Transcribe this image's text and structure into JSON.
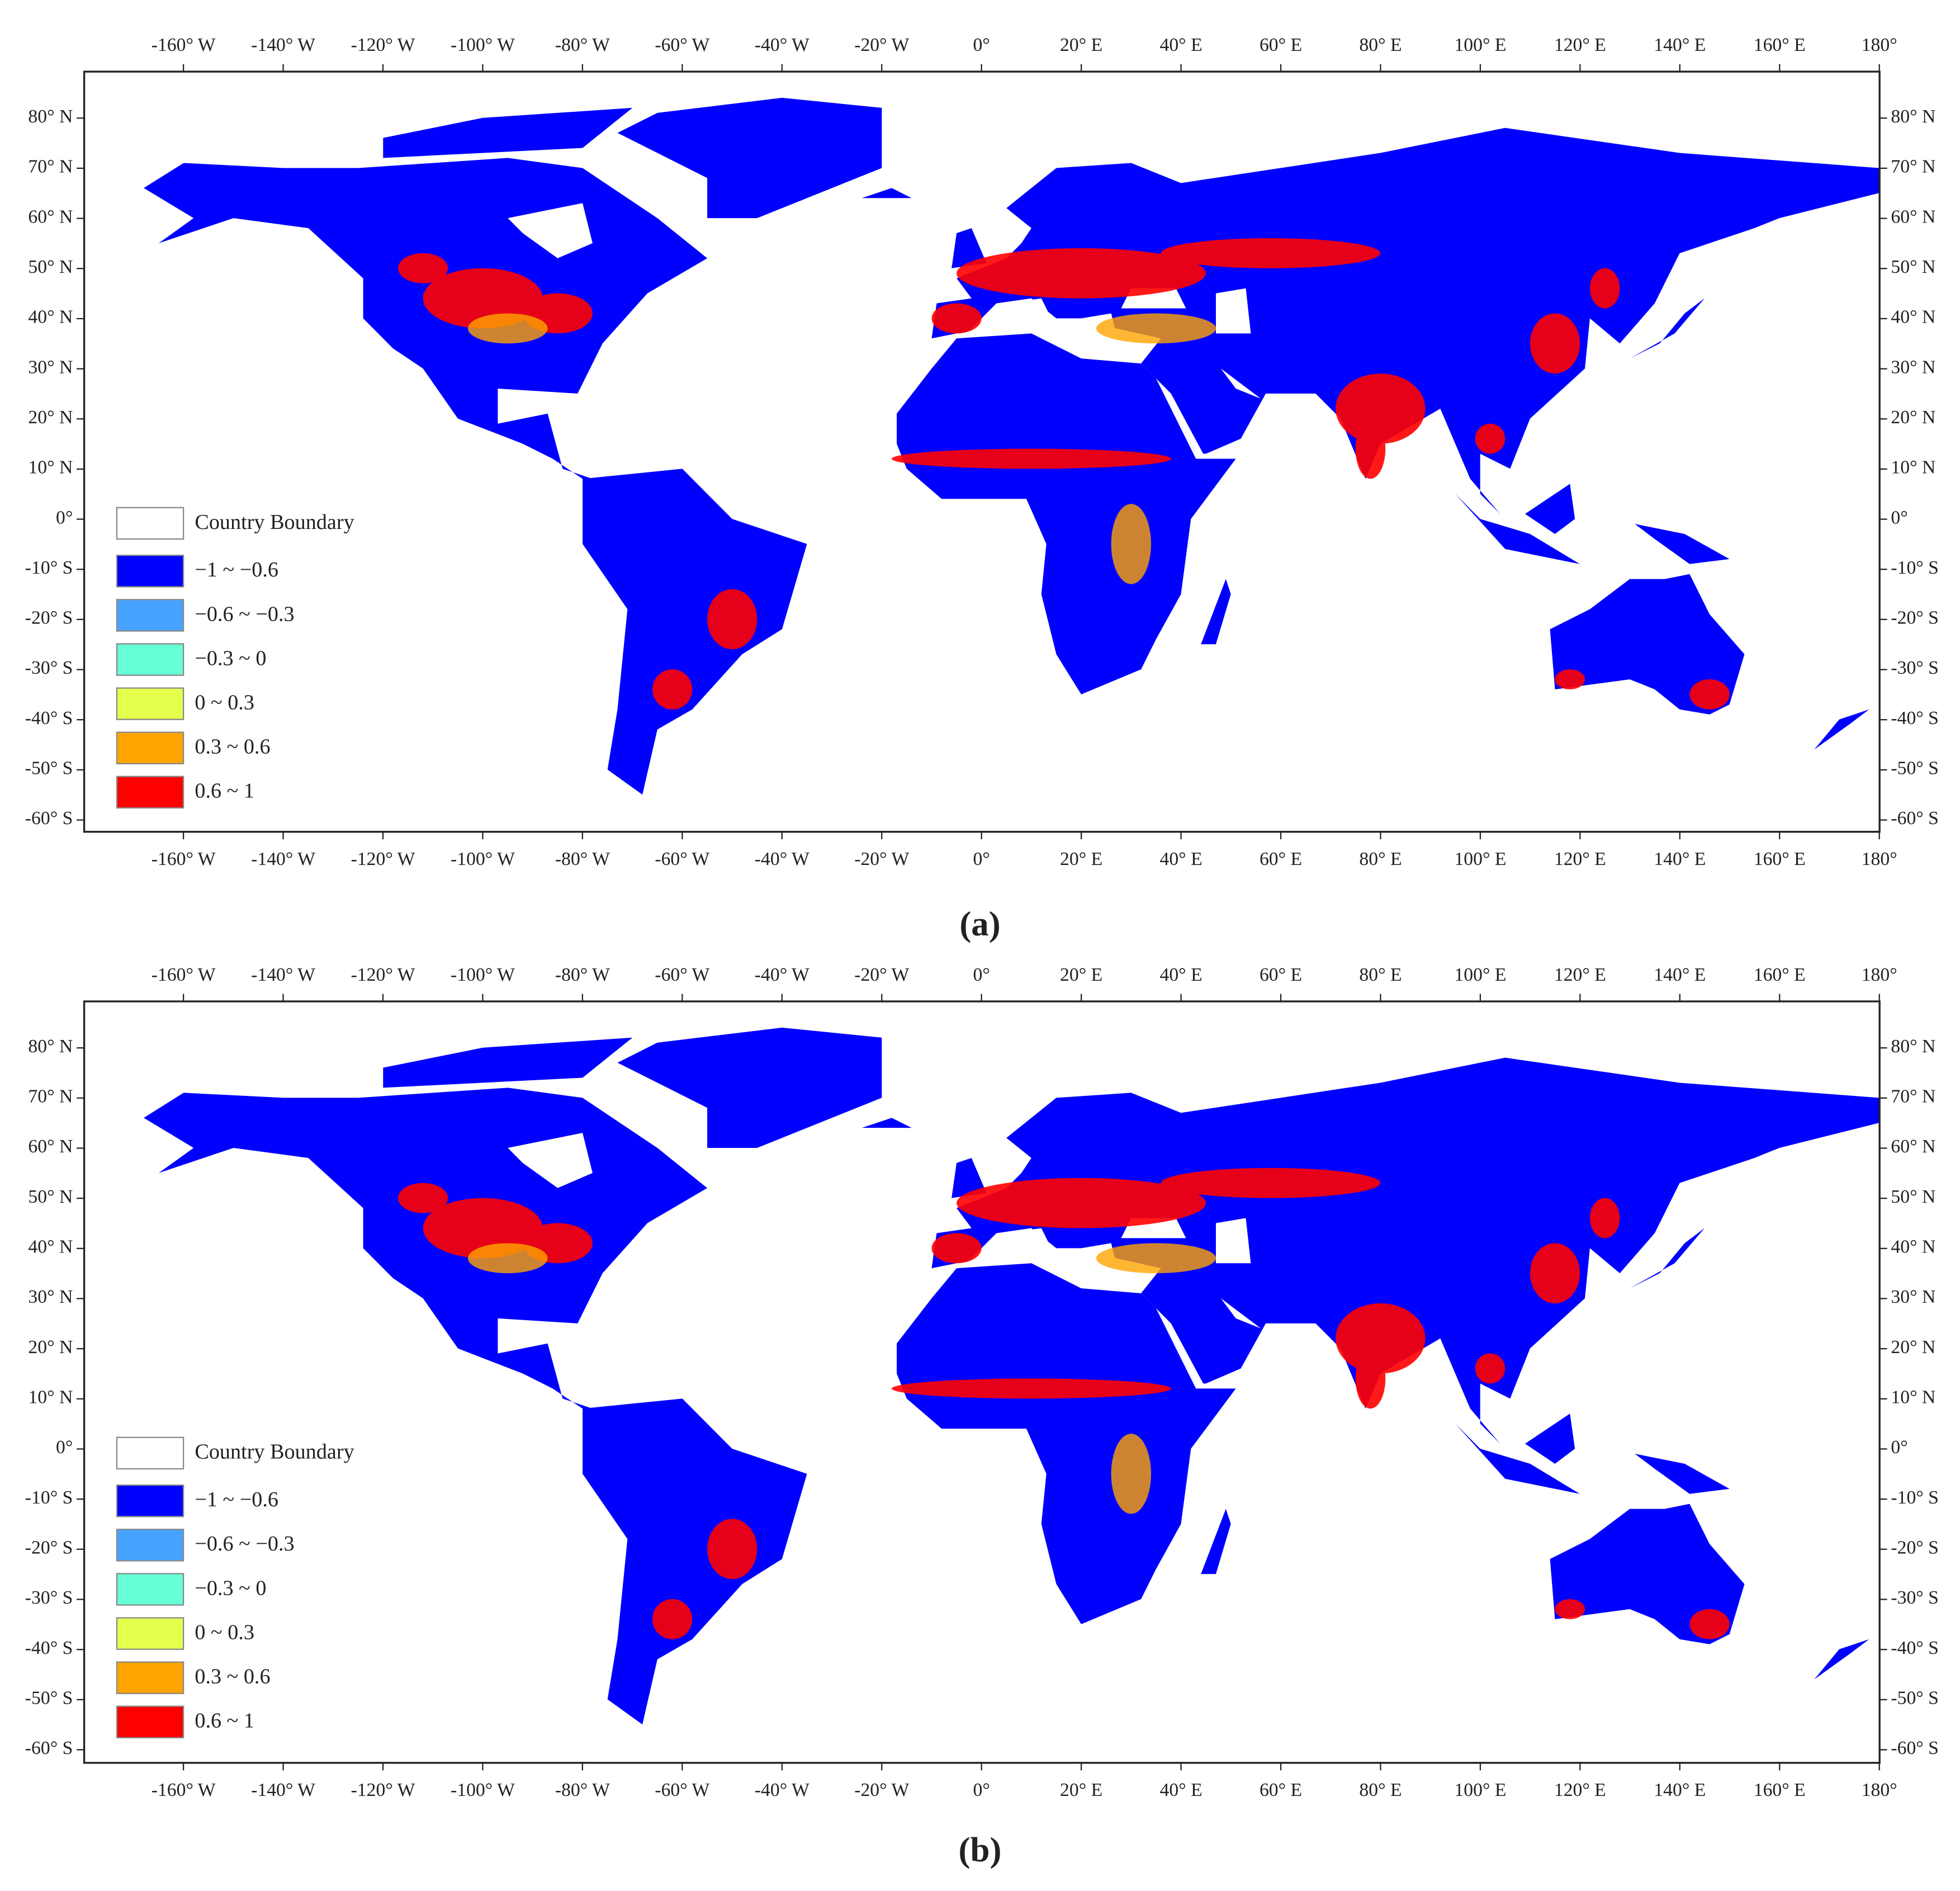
{
  "panels": [
    {
      "label": "(a)",
      "longitude_labels": [
        "-160° W",
        "-140° W",
        "-120° W",
        "-100° W",
        "-80° W",
        "-60° W",
        "-40° W",
        "-20° W",
        "0°",
        "20° E",
        "40° E",
        "60° E",
        "80° E",
        "100° E",
        "120° E",
        "140° E",
        "160° E",
        "180°"
      ],
      "latitude_labels": [
        "80° N",
        "70° N",
        "60° N",
        "50° N",
        "40° N",
        "30° N",
        "20° N",
        "10° N",
        "0°",
        "-10° S",
        "-20° S",
        "-30° S",
        "-40° S",
        "-50° S",
        "-60° S"
      ],
      "legend": [
        {
          "label": "Country Boundary",
          "color": "#ffffff"
        },
        {
          "label": "−1 ~ −0.6",
          "color": "#0000ff"
        },
        {
          "label": "−0.6 ~ −0.3",
          "color": "#47a3ff"
        },
        {
          "label": "−0.3 ~ 0",
          "color": "#66ffd6"
        },
        {
          "label": "0 ~ 0.3",
          "color": "#e5ff4d"
        },
        {
          "label": "0.3 ~ 0.6",
          "color": "#ffa500"
        },
        {
          "label": "0.6 ~ 1",
          "color": "#ff0000"
        }
      ]
    },
    {
      "label": "(b)",
      "longitude_labels": [
        "-160° W",
        "-140° W",
        "-120° W",
        "-100° W",
        "-80° W",
        "-60° W",
        "-40° W",
        "-20° W",
        "0°",
        "20° E",
        "40° E",
        "60° E",
        "80° E",
        "100° E",
        "120° E",
        "140° E",
        "160° E",
        "180°"
      ],
      "latitude_labels": [
        "80° N",
        "70° N",
        "60° N",
        "50° N",
        "40° N",
        "30° N",
        "20° N",
        "10° N",
        "0°",
        "-10° S",
        "-20° S",
        "-30° S",
        "-40° S",
        "-50° S",
        "-60° S"
      ],
      "legend": [
        {
          "label": "Country Boundary",
          "color": "#ffffff"
        },
        {
          "label": "−1 ~ −0.6",
          "color": "#0000ff"
        },
        {
          "label": "−0.6 ~ −0.3",
          "color": "#47a3ff"
        },
        {
          "label": "−0.3 ~ 0",
          "color": "#66ffd6"
        },
        {
          "label": "0 ~ 0.3",
          "color": "#e5ff4d"
        },
        {
          "label": "0.3 ~ 0.6",
          "color": "#ffa500"
        },
        {
          "label": "0.6 ~ 1",
          "color": "#ff0000"
        }
      ]
    }
  ]
}
